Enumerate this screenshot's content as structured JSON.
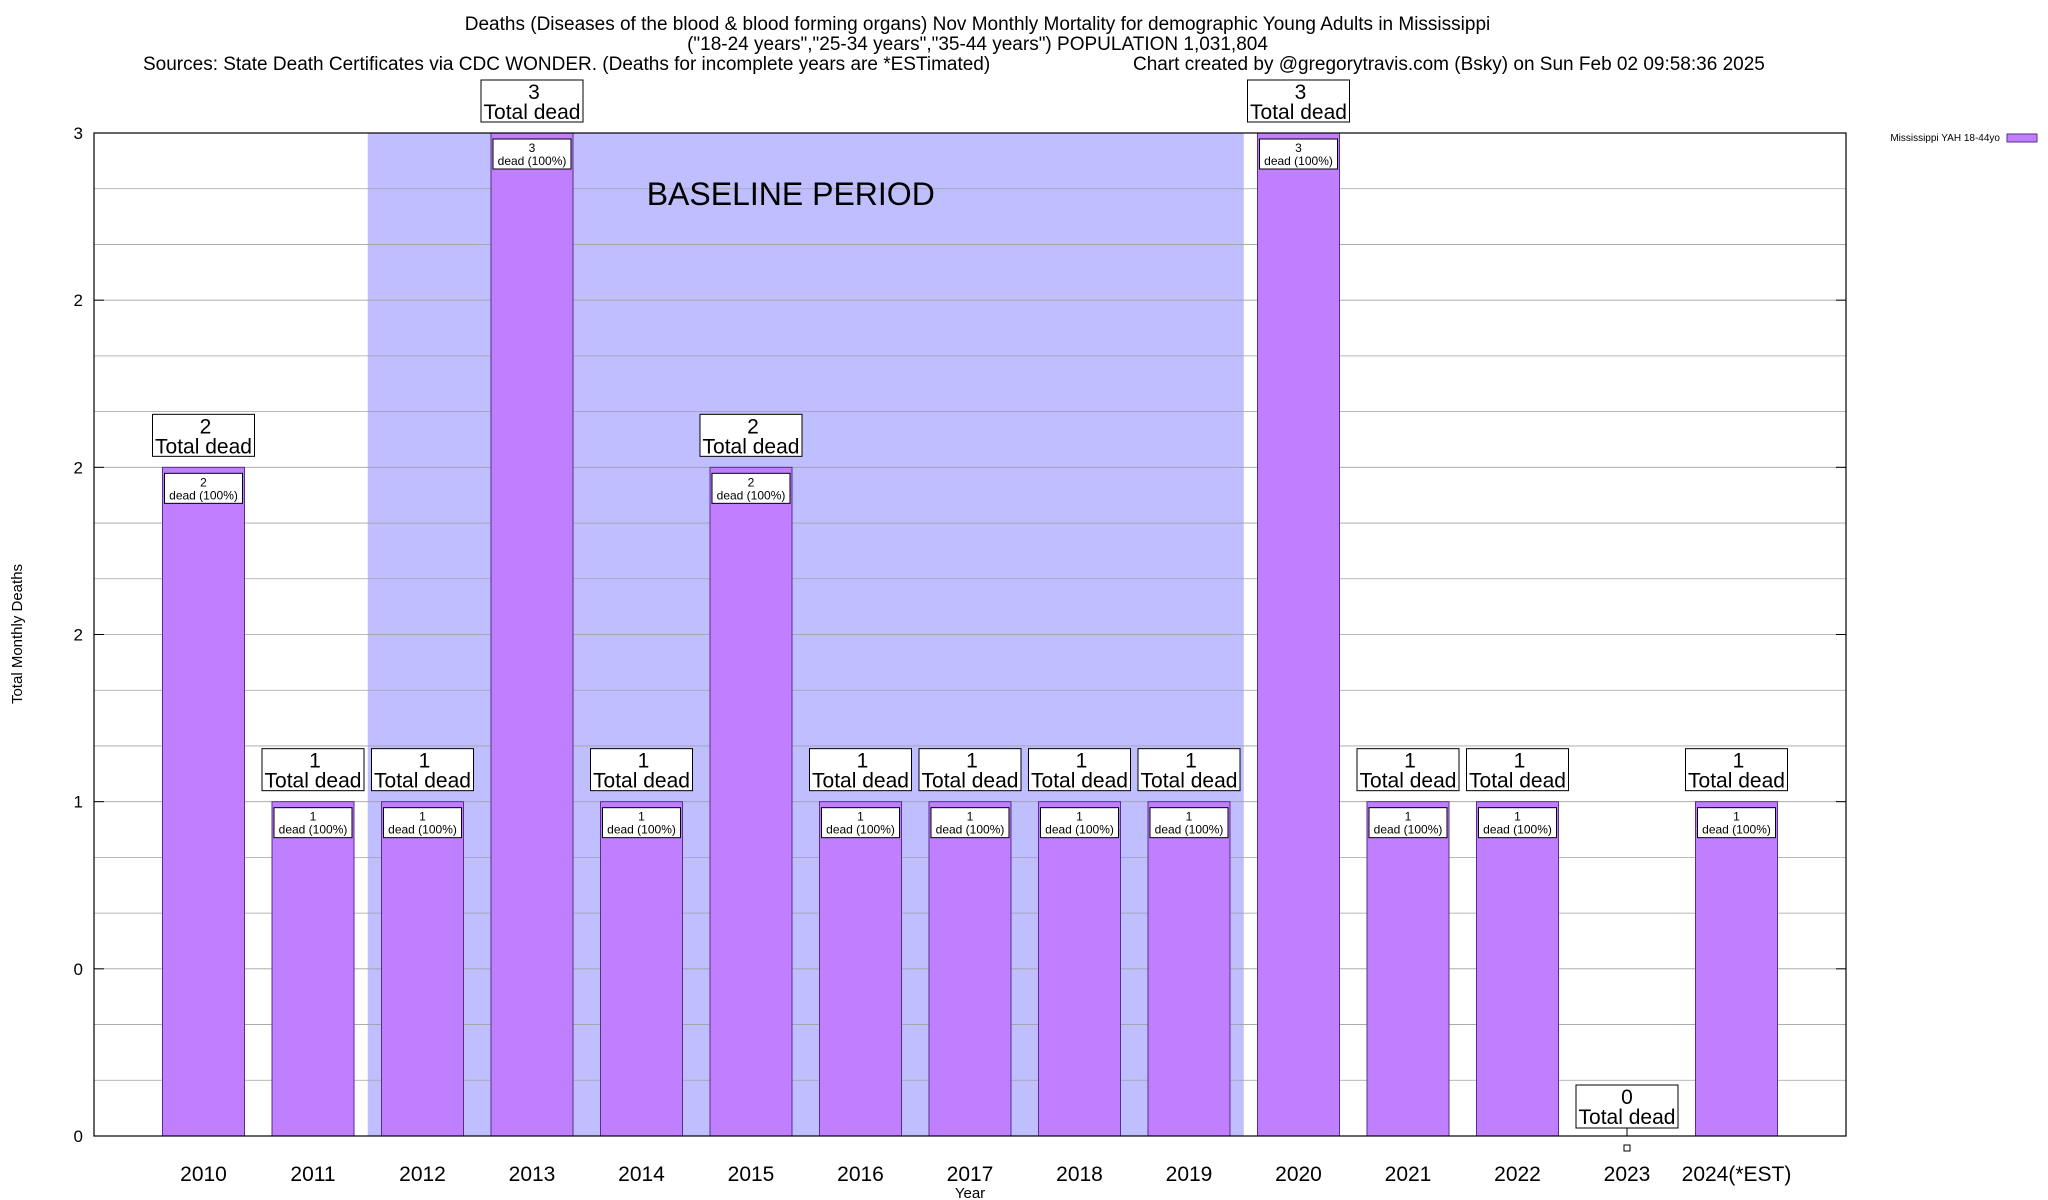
{
  "header": {
    "title_line1": "Deaths (Diseases of the blood & blood forming organs) Nov Monthly Mortality for demographic Young Adults in Mississippi",
    "title_line2": "(\"18-24 years\",\"25-34 years\",\"35-44 years\") POPULATION 1,031,804",
    "sources": "Sources: State Death Certificates via CDC WONDER. (Deaths for incomplete years are *ESTimated)",
    "credit": "Chart created by @gregorytravis.com (Bsky) on Sun Feb 02 09:58:36 2025"
  },
  "chart_data": {
    "type": "bar",
    "title": "Deaths (Diseases of the blood & blood forming organs) Nov Monthly Mortality for demographic Young Adults in Mississippi",
    "xlabel": "Year",
    "ylabel": "Total Monthly Deaths",
    "categories": [
      "2010",
      "2011",
      "2012",
      "2013",
      "2014",
      "2015",
      "2016",
      "2017",
      "2018",
      "2019",
      "2020",
      "2021",
      "2022",
      "2023",
      "2024(*EST)"
    ],
    "series": [
      {
        "name": "Mississippi YAH 18-44yo",
        "values": [
          2,
          1,
          1,
          3,
          1,
          2,
          1,
          1,
          1,
          1,
          3,
          1,
          1,
          0,
          1
        ]
      }
    ],
    "ylim": [
      0,
      3
    ],
    "yticks": [
      {
        "value": 0,
        "label": "0"
      },
      {
        "value": 0.5,
        "label": "0"
      },
      {
        "value": 1,
        "label": "1"
      },
      {
        "value": 1.5,
        "label": "2"
      },
      {
        "value": 2,
        "label": "2"
      },
      {
        "value": 2.5,
        "label": "2"
      },
      {
        "value": 3,
        "label": "3"
      }
    ],
    "total_label_suffix": "Total dead",
    "segment_label_suffix": "dead (100%)",
    "baseline": {
      "label": "BASELINE PERIOD",
      "from_category": "2012",
      "to_category": "2019"
    },
    "legend_position": "top-right",
    "grid": true,
    "colors": {
      "bar": "#bf7fff",
      "bar_border": "#5a2d8c",
      "baseline_band": "#bfbfff",
      "grid": "#a0a0a0"
    }
  }
}
